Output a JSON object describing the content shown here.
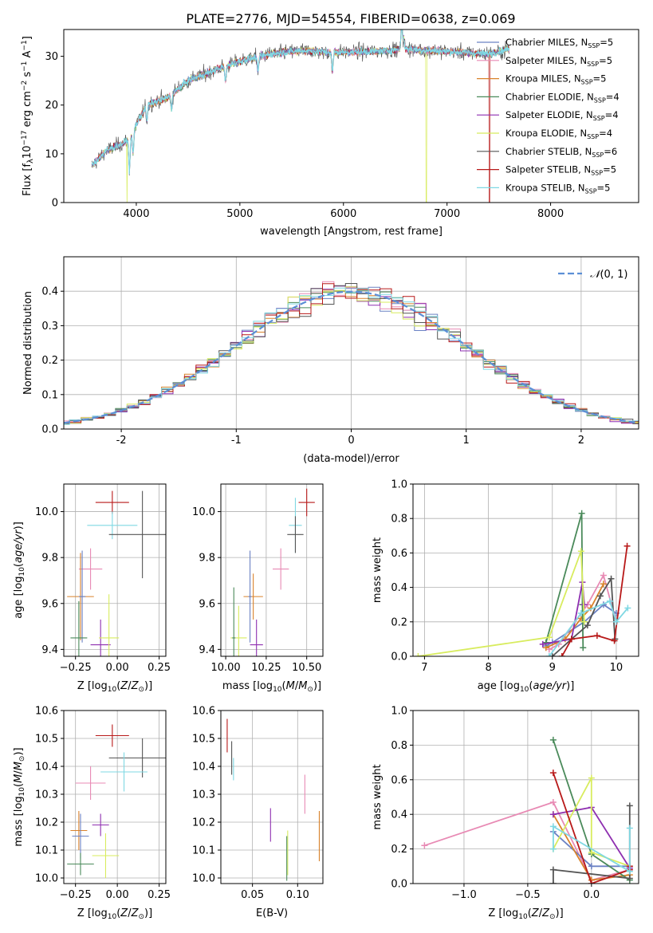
{
  "title": "PLATE=2776, MJD=54554, FIBERID=0638, z=0.069",
  "colors": {
    "chabrier_miles": "#6b82c4",
    "salpeter_miles": "#e88ab4",
    "kroupa_miles": "#d9822b",
    "chabrier_elodie": "#4a8a5a",
    "salpeter_elodie": "#8e2fb0",
    "kroupa_elodie": "#d8ec5e",
    "chabrier_stelib": "#555555",
    "salpeter_stelib": "#b81919",
    "kroupa_stelib": "#7fd8e3",
    "normal": "#5b8fd6"
  },
  "legend_labels": {
    "chabrier_miles": "Chabrier MILES, N",
    "salpeter_miles": "Salpeter MILES, N",
    "kroupa_miles": "Kroupa MILES, N",
    "chabrier_elodie": "Chabrier ELODIE, N",
    "salpeter_elodie": "Salpeter ELODIE, N",
    "kroupa_elodie": "Kroupa ELODIE, N",
    "chabrier_stelib": "Chabrier STELIB, N",
    "salpeter_stelib": "Salpeter STELIB, N",
    "kroupa_stelib": "Kroupa STELIB, N",
    "ssp_sub": "SSP",
    "normal": "N(0,1)"
  },
  "chart_data": [
    {
      "id": "spectrum",
      "type": "line",
      "xlabel": "wavelength [Angstrom, rest frame]",
      "ylabel": "Flux [fλ10^-17 erg cm^-2 s^-1 A^-1]",
      "xlim": [
        3300,
        8850
      ],
      "ylim": [
        0,
        35.5
      ],
      "xticks": [
        4000,
        5000,
        6000,
        7000,
        8000
      ],
      "yticks": [
        0,
        10,
        20,
        30
      ],
      "legend_position": "top-right",
      "grid": false,
      "continuum": {
        "x": [
          3570,
          3700,
          3900,
          4000,
          4100,
          4300,
          4500,
          4800,
          5000,
          5300,
          5600,
          5900,
          6300,
          6600,
          7000,
          7400,
          7600
        ],
        "y": [
          7.5,
          10.5,
          12.5,
          16,
          20,
          21.5,
          25,
          27.5,
          29,
          30.5,
          31.2,
          30.8,
          31,
          31.5,
          31,
          30.5,
          31.5
        ]
      },
      "series": [
        {
          "key": "chabrier_miles",
          "n": 5
        },
        {
          "key": "salpeter_miles",
          "n": 5
        },
        {
          "key": "kroupa_miles",
          "n": 5
        },
        {
          "key": "chabrier_elodie",
          "n": 4
        },
        {
          "key": "salpeter_elodie",
          "n": 4
        },
        {
          "key": "kroupa_elodie",
          "n": 4
        },
        {
          "key": "chabrier_stelib",
          "n": 6
        },
        {
          "key": "salpeter_stelib",
          "n": 5
        },
        {
          "key": "kroupa_stelib",
          "n": 5
        }
      ]
    },
    {
      "id": "residuals",
      "type": "area",
      "xlabel": "(data-model)/error",
      "ylabel": "Normed distribution",
      "xlim": [
        -2.5,
        2.5
      ],
      "ylim": [
        0,
        0.5
      ],
      "xticks": [
        -2,
        -1,
        0,
        1,
        2
      ],
      "yticks": [
        0.0,
        0.1,
        0.2,
        0.3,
        0.4
      ],
      "grid": true,
      "legend_position": "top-right",
      "bin_width": 0.1
    },
    {
      "id": "age_vs_Z",
      "type": "scatter",
      "xlabel": "Z [log10(Z/Z⊙)]",
      "ylabel": "age [log10(age/yr)]",
      "xlim": [
        -0.32,
        0.29
      ],
      "ylim": [
        9.37,
        10.12
      ],
      "xticks": [
        -0.25,
        0.0,
        0.25
      ],
      "xticklabels": [
        "−0.25",
        "0.00",
        "0.25"
      ],
      "yticks": [
        9.4,
        9.6,
        9.8,
        10.0
      ],
      "grid": true,
      "points": [
        {
          "key": "salpeter_stelib",
          "x": -0.03,
          "y": 10.04,
          "xerr": 0.1,
          "yerr": 0.05
        },
        {
          "key": "kroupa_stelib",
          "x": -0.03,
          "y": 9.94,
          "xerr": 0.15,
          "yerr": 0.06
        },
        {
          "key": "chabrier_stelib",
          "x": 0.15,
          "y": 9.9,
          "xerr": 0.2,
          "yerr": 0.19
        },
        {
          "key": "salpeter_miles",
          "x": -0.16,
          "y": 9.75,
          "xerr": 0.07,
          "yerr": 0.09
        },
        {
          "key": "kroupa_miles",
          "x": -0.22,
          "y": 9.63,
          "xerr": 0.08,
          "yerr": 0.19
        },
        {
          "key": "chabrier_miles",
          "x": -0.21,
          "y": 9.63,
          "xerr": 0.02,
          "yerr": 0.2
        },
        {
          "key": "salpeter_elodie",
          "x": -0.1,
          "y": 9.42,
          "xerr": 0.06,
          "yerr": 0.11
        },
        {
          "key": "kroupa_elodie",
          "x": -0.05,
          "y": 9.45,
          "xerr": 0.06,
          "yerr": 0.19
        },
        {
          "key": "chabrier_elodie",
          "x": -0.23,
          "y": 9.45,
          "xerr": 0.05,
          "yerr": 0.16
        }
      ]
    },
    {
      "id": "age_vs_mass",
      "type": "scatter",
      "xlabel": "mass [log10(M/M⊙)]",
      "xlim": [
        9.97,
        10.6
      ],
      "ylim": [
        9.37,
        10.12
      ],
      "xticks": [
        10.0,
        10.25,
        10.5
      ],
      "xticklabels": [
        "10.00",
        "10.25",
        "10.50"
      ],
      "yticks": [
        9.4,
        9.6,
        9.8,
        10.0
      ],
      "grid": true,
      "points": [
        {
          "key": "salpeter_stelib",
          "x": 10.5,
          "y": 10.04,
          "xerr": 0.05,
          "yerr": 0.06
        },
        {
          "key": "kroupa_stelib",
          "x": 10.43,
          "y": 9.94,
          "xerr": 0.04,
          "yerr": 0.12
        },
        {
          "key": "chabrier_stelib",
          "x": 10.43,
          "y": 9.9,
          "xerr": 0.05,
          "yerr": 0.08
        },
        {
          "key": "salpeter_miles",
          "x": 10.34,
          "y": 9.75,
          "xerr": 0.05,
          "yerr": 0.09
        },
        {
          "key": "kroupa_miles",
          "x": 10.17,
          "y": 9.63,
          "xerr": 0.06,
          "yerr": 0.1
        },
        {
          "key": "chabrier_miles",
          "x": 10.15,
          "y": 9.63,
          "xerr": 0.01,
          "yerr": 0.2
        },
        {
          "key": "salpeter_elodie",
          "x": 10.19,
          "y": 9.42,
          "xerr": 0.04,
          "yerr": 0.11
        },
        {
          "key": "kroupa_elodie",
          "x": 10.08,
          "y": 9.45,
          "xerr": 0.05,
          "yerr": 0.14
        },
        {
          "key": "chabrier_elodie",
          "x": 10.05,
          "y": 9.45,
          "xerr": 0.01,
          "yerr": 0.22
        }
      ]
    },
    {
      "id": "weight_vs_age",
      "type": "line",
      "xlabel": "age [log10(age/yr)]",
      "ylabel": "mass weight",
      "xlim": [
        6.82,
        10.35
      ],
      "ylim": [
        0,
        1.0
      ],
      "xticks": [
        7,
        8,
        9,
        10
      ],
      "yticks": [
        0.0,
        0.2,
        0.4,
        0.6,
        0.8,
        1.0
      ],
      "grid": true,
      "series": [
        {
          "key": "chabrier_miles",
          "x": [
            8.9,
            9.0,
            9.5,
            9.8,
            10.0
          ],
          "y": [
            0.06,
            0.08,
            0.2,
            0.3,
            0.25
          ]
        },
        {
          "key": "salpeter_miles",
          "x": [
            8.95,
            9.1,
            9.55,
            9.8,
            10.0
          ],
          "y": [
            0.04,
            0.07,
            0.3,
            0.47,
            0.2
          ]
        },
        {
          "key": "kroupa_miles",
          "x": [
            8.9,
            9.2,
            9.45,
            9.6,
            9.8
          ],
          "y": [
            0.05,
            0.1,
            0.22,
            0.28,
            0.42
          ]
        },
        {
          "key": "chabrier_elodie",
          "x": [
            8.9,
            9.46,
            9.47,
            9.48
          ],
          "y": [
            0.08,
            0.83,
            0.3,
            0.05
          ]
        },
        {
          "key": "salpeter_elodie",
          "x": [
            8.85,
            9.3,
            9.47,
            9.5
          ],
          "y": [
            0.07,
            0.1,
            0.43,
            0.3
          ]
        },
        {
          "key": "kroupa_elodie",
          "x": [
            6.9,
            8.95,
            9.45,
            9.5
          ],
          "y": [
            0.0,
            0.11,
            0.61,
            0.2
          ]
        },
        {
          "key": "chabrier_stelib",
          "x": [
            9.0,
            9.3,
            9.55,
            9.75,
            9.92,
            9.98
          ],
          "y": [
            0.0,
            0.1,
            0.18,
            0.35,
            0.45,
            0.1
          ]
        },
        {
          "key": "salpeter_stelib",
          "x": [
            9.15,
            9.3,
            9.7,
            9.97,
            10.17
          ],
          "y": [
            0.0,
            0.1,
            0.12,
            0.09,
            0.64
          ]
        },
        {
          "key": "kroupa_stelib",
          "x": [
            8.95,
            9.45,
            9.9,
            10.0,
            10.18
          ],
          "y": [
            0.0,
            0.25,
            0.32,
            0.2,
            0.28
          ]
        }
      ]
    },
    {
      "id": "mass_vs_Z",
      "type": "scatter",
      "xlabel": "Z [log10(Z/Z⊙)]",
      "ylabel": "mass [log10(M/M⊙)]",
      "xlim": [
        -0.32,
        0.29
      ],
      "ylim": [
        9.98,
        10.6
      ],
      "xticks": [
        -0.25,
        0.0,
        0.25
      ],
      "xticklabels": [
        "−0.25",
        "0.00",
        "0.25"
      ],
      "yticks": [
        10.0,
        10.1,
        10.2,
        10.3,
        10.4,
        10.5,
        10.6
      ],
      "grid": true,
      "points": [
        {
          "key": "salpeter_stelib",
          "x": -0.03,
          "y": 10.51,
          "xerr": 0.1,
          "yerr": 0.04
        },
        {
          "key": "chabrier_stelib",
          "x": 0.15,
          "y": 10.43,
          "xerr": 0.2,
          "yerr": 0.07
        },
        {
          "key": "kroupa_stelib",
          "x": 0.04,
          "y": 10.38,
          "xerr": 0.14,
          "yerr": 0.07
        },
        {
          "key": "salpeter_miles",
          "x": -0.16,
          "y": 10.34,
          "xerr": 0.09,
          "yerr": 0.06
        },
        {
          "key": "salpeter_elodie",
          "x": -0.1,
          "y": 10.19,
          "xerr": 0.05,
          "yerr": 0.04
        },
        {
          "key": "kroupa_miles",
          "x": -0.23,
          "y": 10.17,
          "xerr": 0.05,
          "yerr": 0.07
        },
        {
          "key": "chabrier_miles",
          "x": -0.22,
          "y": 10.15,
          "xerr": 0.05,
          "yerr": 0.08
        },
        {
          "key": "kroupa_elodie",
          "x": -0.07,
          "y": 10.08,
          "xerr": 0.08,
          "yerr": 0.08
        },
        {
          "key": "chabrier_elodie",
          "x": -0.22,
          "y": 10.05,
          "xerr": 0.08,
          "yerr": 0.04
        }
      ]
    },
    {
      "id": "mass_vs_EBV",
      "type": "scatter",
      "xlabel": "E(B-V)",
      "xlim": [
        0.015,
        0.128
      ],
      "ylim": [
        9.98,
        10.6
      ],
      "xticks": [
        0.05,
        0.1
      ],
      "xticklabels": [
        "0.05",
        "0.10"
      ],
      "yticks": [
        10.0,
        10.1,
        10.2,
        10.3,
        10.4,
        10.5,
        10.6
      ],
      "grid": true,
      "points": [
        {
          "key": "salpeter_stelib",
          "x": 0.022,
          "y": 10.51,
          "xerr": 0,
          "yerr": 0.06
        },
        {
          "key": "chabrier_stelib",
          "x": 0.027,
          "y": 10.43,
          "xerr": 0,
          "yerr": 0.06
        },
        {
          "key": "kroupa_stelib",
          "x": 0.029,
          "y": 10.39,
          "xerr": 0,
          "yerr": 0.04
        },
        {
          "key": "salpeter_miles",
          "x": 0.108,
          "y": 10.3,
          "xerr": 0,
          "yerr": 0.07
        },
        {
          "key": "salpeter_elodie",
          "x": 0.07,
          "y": 10.19,
          "xerr": 0,
          "yerr": 0.06
        },
        {
          "key": "kroupa_miles",
          "x": 0.124,
          "y": 10.15,
          "xerr": 0,
          "yerr": 0.09
        },
        {
          "key": "kroupa_elodie",
          "x": 0.089,
          "y": 10.09,
          "xerr": 0,
          "yerr": 0.08
        },
        {
          "key": "chabrier_elodie",
          "x": 0.088,
          "y": 10.07,
          "xerr": 0,
          "yerr": 0.08
        }
      ]
    },
    {
      "id": "weight_vs_Z",
      "type": "line",
      "xlabel": "Z [log10(Z/Z⊙)]",
      "ylabel": "mass weight",
      "xlim": [
        -1.4,
        0.37
      ],
      "ylim": [
        0,
        1.0
      ],
      "xticks": [
        -1.0,
        -0.5,
        0.0
      ],
      "xticklabels": [
        "−1.0",
        "−0.5",
        "0.0"
      ],
      "yticks": [
        0.0,
        0.2,
        0.4,
        0.6,
        0.8,
        1.0
      ],
      "grid": true,
      "series": [
        {
          "key": "salpeter_miles",
          "x": [
            -1.31,
            -0.3,
            0.0,
            0.3
          ],
          "y": [
            0.22,
            0.47,
            0.02,
            0.08
          ]
        },
        {
          "key": "chabrier_miles",
          "x": [
            -0.3,
            0.0,
            0.3
          ],
          "y": [
            0.3,
            0.1,
            0.1
          ]
        },
        {
          "key": "kroupa_miles",
          "x": [
            -0.3,
            0.0,
            0.3
          ],
          "y": [
            0.4,
            0.02,
            0.05
          ]
        },
        {
          "key": "chabrier_elodie",
          "x": [
            -0.3,
            0.0,
            0.3
          ],
          "y": [
            0.83,
            0.17,
            0.02
          ]
        },
        {
          "key": "salpeter_elodie",
          "x": [
            -0.3,
            0.0,
            0.3
          ],
          "y": [
            0.4,
            0.44,
            0.09
          ]
        },
        {
          "key": "kroupa_elodie",
          "x": [
            -0.3,
            0.0,
            0.0,
            0.3
          ],
          "y": [
            0.2,
            0.61,
            0.18,
            0.1
          ]
        },
        {
          "key": "chabrier_stelib",
          "x": [
            -0.3,
            -0.3,
            0.3,
            0.3
          ],
          "y": [
            0.0,
            0.08,
            0.03,
            0.45
          ]
        },
        {
          "key": "salpeter_stelib",
          "x": [
            -0.3,
            0.0,
            0.3,
            0.3
          ],
          "y": [
            0.64,
            0.0,
            0.08,
            0.1
          ]
        },
        {
          "key": "kroupa_stelib",
          "x": [
            -0.3,
            -0.3,
            0.3,
            0.3
          ],
          "y": [
            0.2,
            0.33,
            0.07,
            0.32
          ]
        }
      ]
    }
  ]
}
